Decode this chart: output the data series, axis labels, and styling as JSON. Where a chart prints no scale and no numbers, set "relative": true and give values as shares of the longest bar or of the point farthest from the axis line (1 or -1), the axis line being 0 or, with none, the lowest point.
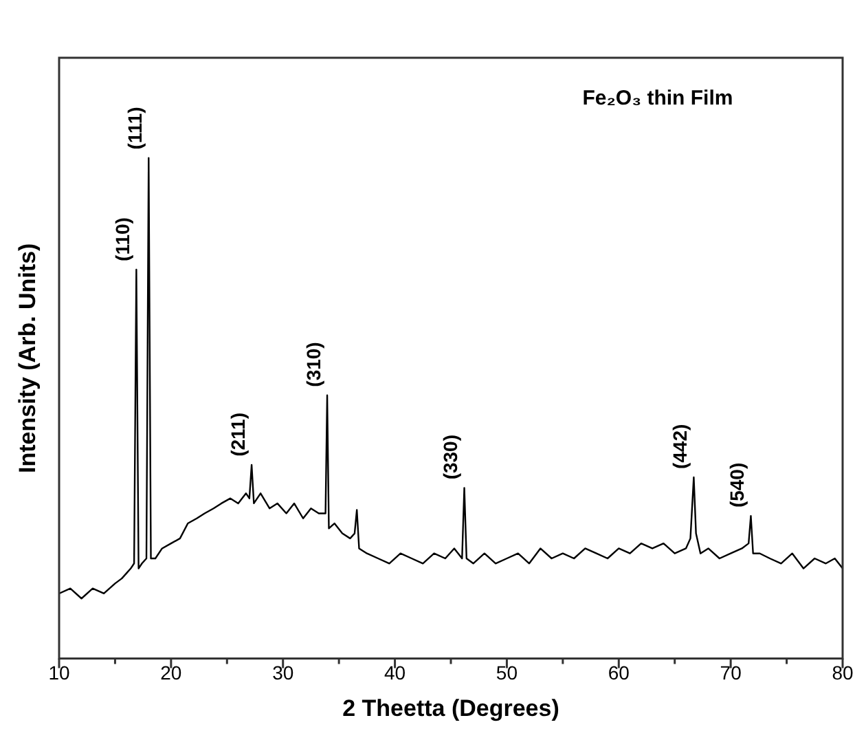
{
  "chart_data": {
    "type": "line",
    "title": "Fe₂O₃ thin Film",
    "xlabel": "2 Theetta (Degrees)",
    "ylabel": "Intensity (Arb. Units)",
    "relative": true,
    "xlim": [
      10,
      80
    ],
    "xticks": [
      10,
      {
        "value": 15,
        "label": null
      },
      20,
      {
        "value": 25,
        "label": null
      },
      30,
      {
        "value": 35,
        "label": null
      },
      40,
      {
        "value": 45,
        "label": null
      },
      50,
      {
        "value": 55,
        "label": null
      },
      60,
      {
        "value": 65,
        "label": null
      },
      70,
      {
        "value": 75,
        "label": null
      },
      80
    ],
    "series": [
      {
        "color": "#000000",
        "x": [
          10,
          11,
          12,
          13,
          14,
          15,
          15.6,
          16,
          16.4,
          16.7,
          16.9,
          17.1,
          17.4,
          17.8,
          18.0,
          18.2,
          18.6,
          19.2,
          20,
          20.8,
          21.5,
          22.3,
          23,
          23.8,
          24.5,
          25.3,
          26,
          26.7,
          27.0,
          27.2,
          27.4,
          28,
          28.8,
          29.5,
          30.3,
          31,
          31.8,
          32.5,
          33.2,
          33.8,
          33.95,
          34.1,
          34.6,
          35.3,
          36,
          36.4,
          36.6,
          36.8,
          37.5,
          38.5,
          39.5,
          40.5,
          41.5,
          42.5,
          43.5,
          44.5,
          45.3,
          46.0,
          46.2,
          46.4,
          47,
          48,
          49,
          50,
          51,
          52,
          53,
          54,
          55,
          56,
          57,
          58,
          59,
          60,
          61,
          62,
          63,
          64,
          65,
          66,
          66.4,
          66.7,
          66.9,
          67.3,
          68,
          69,
          70,
          71,
          71.6,
          71.8,
          72.0,
          72.6,
          73.5,
          74.5,
          75.5,
          76.5,
          77.5,
          78.5,
          79.3,
          80
        ],
        "values": [
          0.13,
          0.14,
          0.12,
          0.14,
          0.13,
          0.15,
          0.16,
          0.17,
          0.18,
          0.19,
          0.777,
          0.18,
          0.19,
          0.2,
          1.0,
          0.2,
          0.2,
          0.22,
          0.23,
          0.24,
          0.27,
          0.28,
          0.29,
          0.3,
          0.31,
          0.32,
          0.31,
          0.33,
          0.32,
          0.387,
          0.31,
          0.33,
          0.3,
          0.31,
          0.29,
          0.31,
          0.28,
          0.3,
          0.29,
          0.29,
          0.526,
          0.26,
          0.27,
          0.25,
          0.24,
          0.25,
          0.297,
          0.22,
          0.21,
          0.2,
          0.19,
          0.21,
          0.2,
          0.19,
          0.21,
          0.2,
          0.22,
          0.2,
          0.341,
          0.2,
          0.19,
          0.21,
          0.19,
          0.2,
          0.21,
          0.19,
          0.22,
          0.2,
          0.21,
          0.2,
          0.22,
          0.21,
          0.2,
          0.22,
          0.21,
          0.23,
          0.22,
          0.23,
          0.21,
          0.22,
          0.24,
          0.362,
          0.25,
          0.21,
          0.22,
          0.2,
          0.21,
          0.22,
          0.23,
          0.285,
          0.21,
          0.21,
          0.2,
          0.19,
          0.21,
          0.18,
          0.2,
          0.19,
          0.2,
          0.18
        ]
      }
    ],
    "annotations": [
      {
        "text": "(110)",
        "x": 16.9,
        "y": 0.777
      },
      {
        "text": "(111)",
        "x": 18.0,
        "y": 1.0
      },
      {
        "text": "(211)",
        "x": 27.2,
        "y": 0.387
      },
      {
        "text": "(310)",
        "x": 33.95,
        "y": 0.526
      },
      {
        "text": "(330)",
        "x": 46.2,
        "y": 0.341
      },
      {
        "text": "(442)",
        "x": 66.7,
        "y": 0.362
      },
      {
        "text": "(540)",
        "x": 71.8,
        "y": 0.285
      }
    ]
  }
}
